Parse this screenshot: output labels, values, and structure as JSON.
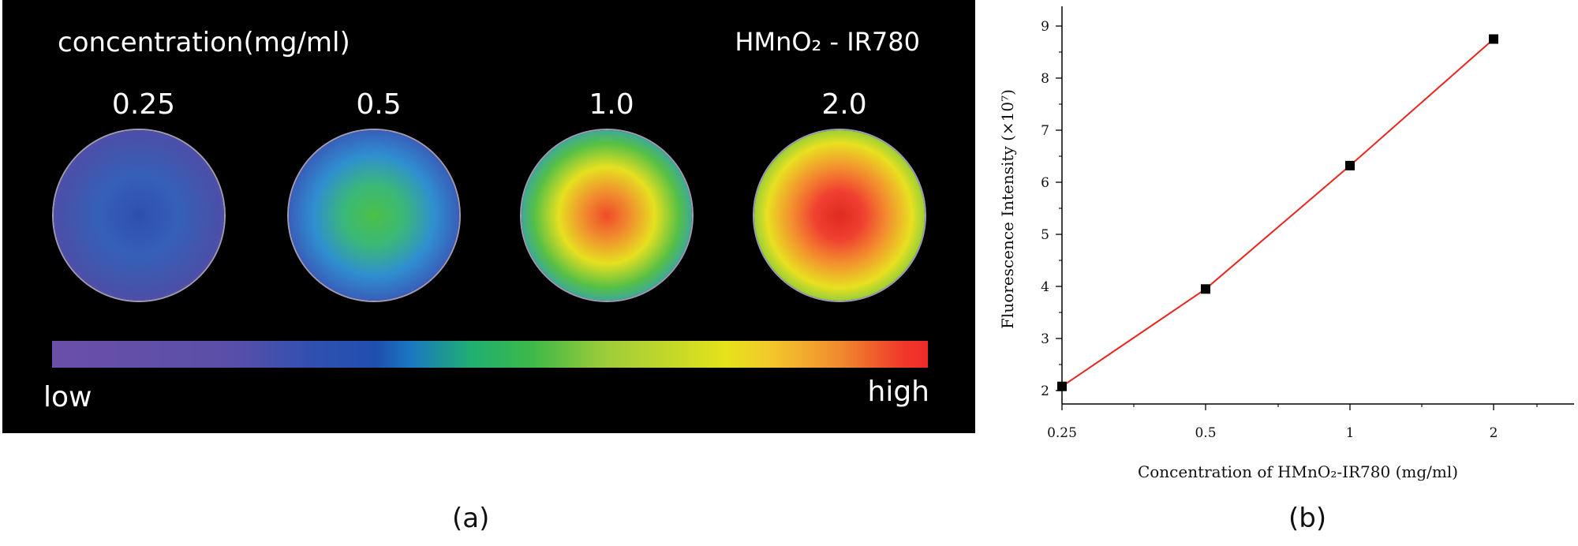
{
  "panel_a": {
    "concentration_title": "concentration(mg/ml)",
    "sample_title": "HMnO₂ - IR780",
    "dishes": [
      {
        "label": "0.25",
        "colors": [
          "#2e4fb0",
          "#3560b8",
          "#4a50a8",
          "#6a4ea8"
        ]
      },
      {
        "label": "0.5",
        "colors": [
          "#4cc048",
          "#3ab878",
          "#2f8fd0",
          "#3a55b5",
          "#5a50aa"
        ]
      },
      {
        "label": "1.0",
        "colors": [
          "#f04a2a",
          "#f0902e",
          "#e6e020",
          "#56c045",
          "#2a96d8",
          "#3855b5"
        ]
      },
      {
        "label": "2.0",
        "colors": [
          "#e02a22",
          "#f04030",
          "#f3902e",
          "#e8e020",
          "#5cc248",
          "#38a6d0"
        ]
      }
    ],
    "colorbar_low": "low",
    "colorbar_high": "high",
    "tag": "(a)"
  },
  "panel_b": {
    "tag": "(b)",
    "colors": {
      "line": "#e8251f",
      "marker": "#000000",
      "axis": "#000000"
    }
  },
  "chart_data": {
    "type": "line",
    "categories": [
      "0.25",
      "0.5",
      "1",
      "2"
    ],
    "series": [
      {
        "values": [
          2.08,
          3.95,
          6.32,
          8.75
        ]
      }
    ],
    "xlabel": "Concentration of HMnO₂-IR780 (mg/ml)",
    "ylabel": "Fluorescence Intensity (×10⁷)",
    "y_ticks": [
      "2",
      "3",
      "4",
      "5",
      "6",
      "7",
      "8",
      "9"
    ],
    "ylim": [
      1.8,
      9.3
    ],
    "marker": "square",
    "grid": false
  }
}
